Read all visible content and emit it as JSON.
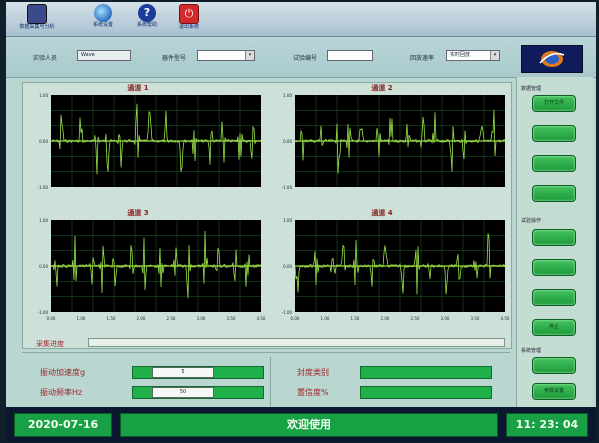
{
  "menu": {
    "items": [
      {
        "label": "数据采集与分析",
        "icon": "monitor-icon",
        "color": "#3a4a8a"
      },
      {
        "label": "系统设置",
        "icon": "globe-icon",
        "color": "#2f6fc0"
      },
      {
        "label": "系统帮助",
        "icon": "help-icon",
        "color": "#1c3c9c"
      },
      {
        "label": "退出系统",
        "icon": "power-icon",
        "color": "#d22a2a"
      }
    ]
  },
  "toolbar": {
    "tester_label": "实验人员",
    "tester_value": "Wave",
    "model_label": "器件型号",
    "model_value": "",
    "test_no_label": "试验编号",
    "test_no_value": "",
    "playback_label": "回放速率",
    "playback_value": "实时回放"
  },
  "charts": {
    "grid_color": "#1d5e2a",
    "signal_color": "#9be04a",
    "bg_color": "#000000",
    "axis_text_color": "#e8e8e8",
    "channels": [
      {
        "title": "通道 1"
      },
      {
        "title": "通道 2"
      },
      {
        "title": "通道 3"
      },
      {
        "title": "通道 4"
      }
    ],
    "y_ticks": [
      "1.00",
      "0.00",
      "-1.00"
    ],
    "x_ticks": [
      "0.00",
      "1.00",
      "1.50",
      "2.00",
      "2.50",
      "3.00",
      "3.50",
      "4.50"
    ]
  },
  "progress": {
    "label": "采集进度",
    "value": 0
  },
  "params": {
    "accel_label": "振动加速度g",
    "accel_value": "5",
    "freq_label": "振动频率Hz",
    "freq_value": "50",
    "hermetic_label": "封度类别",
    "hermetic_value": "",
    "position_label": "置信度%",
    "position_value": ""
  },
  "sidebar": {
    "sections": [
      {
        "label": "数据管理",
        "buttons": [
          "打开文件",
          "",
          "",
          ""
        ]
      },
      {
        "label": "试验操作",
        "buttons": [
          "",
          "",
          "",
          "停止"
        ]
      },
      {
        "label": "系统管理",
        "buttons": [
          "",
          "参数设置"
        ]
      }
    ],
    "btn_color": "#2eb04e"
  },
  "status": {
    "date": "2020-07-16",
    "message": "欢迎使用",
    "time": "11: 23: 04"
  }
}
